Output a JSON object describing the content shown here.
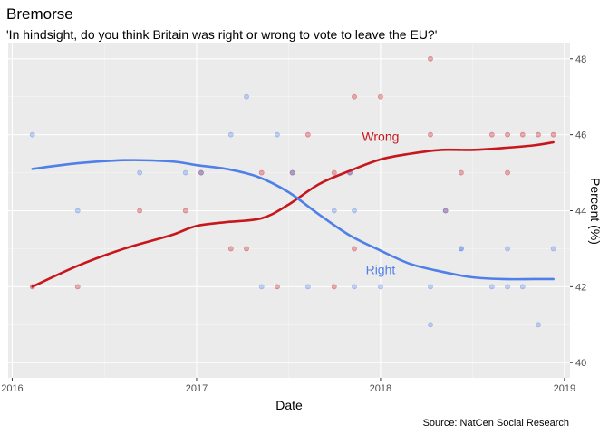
{
  "chart_data": {
    "type": "scatter",
    "title": "Bremorse",
    "subtitle": "'In hindsight, do you think Britain was right or wrong to vote to leave the EU?'",
    "xlabel": "Date",
    "ylabel": "Percent (%)",
    "caption": "Source: NatCen Social Research",
    "xlim": [
      "2015-12-24",
      "2019-01-12"
    ],
    "ylim": [
      39.6,
      48.4
    ],
    "x_ticks": [
      "2016-01-01",
      "2017-01-01",
      "2018-01-01",
      "2019-01-01"
    ],
    "x_tick_labels": [
      "2016",
      "2017",
      "2018",
      "2019"
    ],
    "y_ticks": [
      40,
      42,
      44,
      46,
      48
    ],
    "y_axis_position": "right",
    "grid": true,
    "legend": "none",
    "series": [
      {
        "name": "Wrong",
        "color": "#c8161d",
        "points": [
          [
            "2016-02-10",
            42
          ],
          [
            "2016-05-10",
            42
          ],
          [
            "2016-09-10",
            44
          ],
          [
            "2016-12-10",
            44
          ],
          [
            "2017-01-10",
            45
          ],
          [
            "2017-03-10",
            43
          ],
          [
            "2017-04-10",
            43
          ],
          [
            "2017-05-10",
            45
          ],
          [
            "2017-06-10",
            42
          ],
          [
            "2017-07-10",
            45
          ],
          [
            "2017-08-10",
            46
          ],
          [
            "2017-10-01",
            42
          ],
          [
            "2017-10-01",
            45
          ],
          [
            "2017-11-01",
            45
          ],
          [
            "2017-11-10",
            43
          ],
          [
            "2017-11-10",
            47
          ],
          [
            "2018-01-01",
            47
          ],
          [
            "2018-04-10",
            46
          ],
          [
            "2018-04-10",
            48
          ],
          [
            "2018-05-10",
            44
          ],
          [
            "2018-06-10",
            45
          ],
          [
            "2018-08-10",
            46
          ],
          [
            "2018-09-10",
            45
          ],
          [
            "2018-09-10",
            46
          ],
          [
            "2018-10-10",
            46
          ],
          [
            "2018-11-10",
            46
          ],
          [
            "2018-12-10",
            46
          ]
        ],
        "smooth": [
          [
            "2016-02-10",
            42.0
          ],
          [
            "2016-05-10",
            42.55
          ],
          [
            "2016-08-10",
            43.0
          ],
          [
            "2016-11-10",
            43.35
          ],
          [
            "2017-01-01",
            43.6
          ],
          [
            "2017-03-01",
            43.7
          ],
          [
            "2017-05-10",
            43.8
          ],
          [
            "2017-07-01",
            44.15
          ],
          [
            "2017-09-01",
            44.7
          ],
          [
            "2017-11-01",
            45.05
          ],
          [
            "2018-01-01",
            45.35
          ],
          [
            "2018-03-01",
            45.5
          ],
          [
            "2018-05-01",
            45.6
          ],
          [
            "2018-07-01",
            45.6
          ],
          [
            "2018-09-01",
            45.65
          ],
          [
            "2018-11-01",
            45.72
          ],
          [
            "2018-12-10",
            45.8
          ]
        ]
      },
      {
        "name": "Right",
        "color": "#4f7fe8",
        "points": [
          [
            "2016-02-10",
            46
          ],
          [
            "2016-05-10",
            44
          ],
          [
            "2016-09-10",
            45
          ],
          [
            "2016-12-10",
            45
          ],
          [
            "2017-01-10",
            45
          ],
          [
            "2017-03-10",
            46
          ],
          [
            "2017-04-10",
            47
          ],
          [
            "2017-05-10",
            42
          ],
          [
            "2017-06-10",
            46
          ],
          [
            "2017-07-10",
            45
          ],
          [
            "2017-08-10",
            42
          ],
          [
            "2017-10-01",
            44
          ],
          [
            "2017-11-01",
            45
          ],
          [
            "2017-11-10",
            42
          ],
          [
            "2017-11-10",
            44
          ],
          [
            "2018-01-01",
            42
          ],
          [
            "2018-04-10",
            42
          ],
          [
            "2018-04-10",
            41
          ],
          [
            "2018-05-10",
            44
          ],
          [
            "2018-06-10",
            43
          ],
          [
            "2018-06-10",
            43
          ],
          [
            "2018-08-10",
            42
          ],
          [
            "2018-09-10",
            42
          ],
          [
            "2018-09-10",
            43
          ],
          [
            "2018-10-10",
            42
          ],
          [
            "2018-11-10",
            41
          ],
          [
            "2018-12-10",
            43
          ]
        ],
        "smooth": [
          [
            "2016-02-10",
            45.1
          ],
          [
            "2016-05-10",
            45.25
          ],
          [
            "2016-08-10",
            45.33
          ],
          [
            "2016-11-10",
            45.3
          ],
          [
            "2017-01-01",
            45.2
          ],
          [
            "2017-03-01",
            45.1
          ],
          [
            "2017-05-01",
            44.9
          ],
          [
            "2017-07-01",
            44.5
          ],
          [
            "2017-09-01",
            43.9
          ],
          [
            "2017-11-01",
            43.35
          ],
          [
            "2018-01-01",
            42.95
          ],
          [
            "2018-03-01",
            42.6
          ],
          [
            "2018-05-01",
            42.4
          ],
          [
            "2018-07-01",
            42.25
          ],
          [
            "2018-09-01",
            42.2
          ],
          [
            "2018-11-01",
            42.2
          ],
          [
            "2018-12-10",
            42.2
          ]
        ]
      }
    ],
    "series_labels": [
      {
        "text": "Wrong",
        "x": "2018-01-01",
        "y": 45.95
      },
      {
        "text": "Right",
        "x": "2018-01-01",
        "y": 42.45
      }
    ]
  }
}
